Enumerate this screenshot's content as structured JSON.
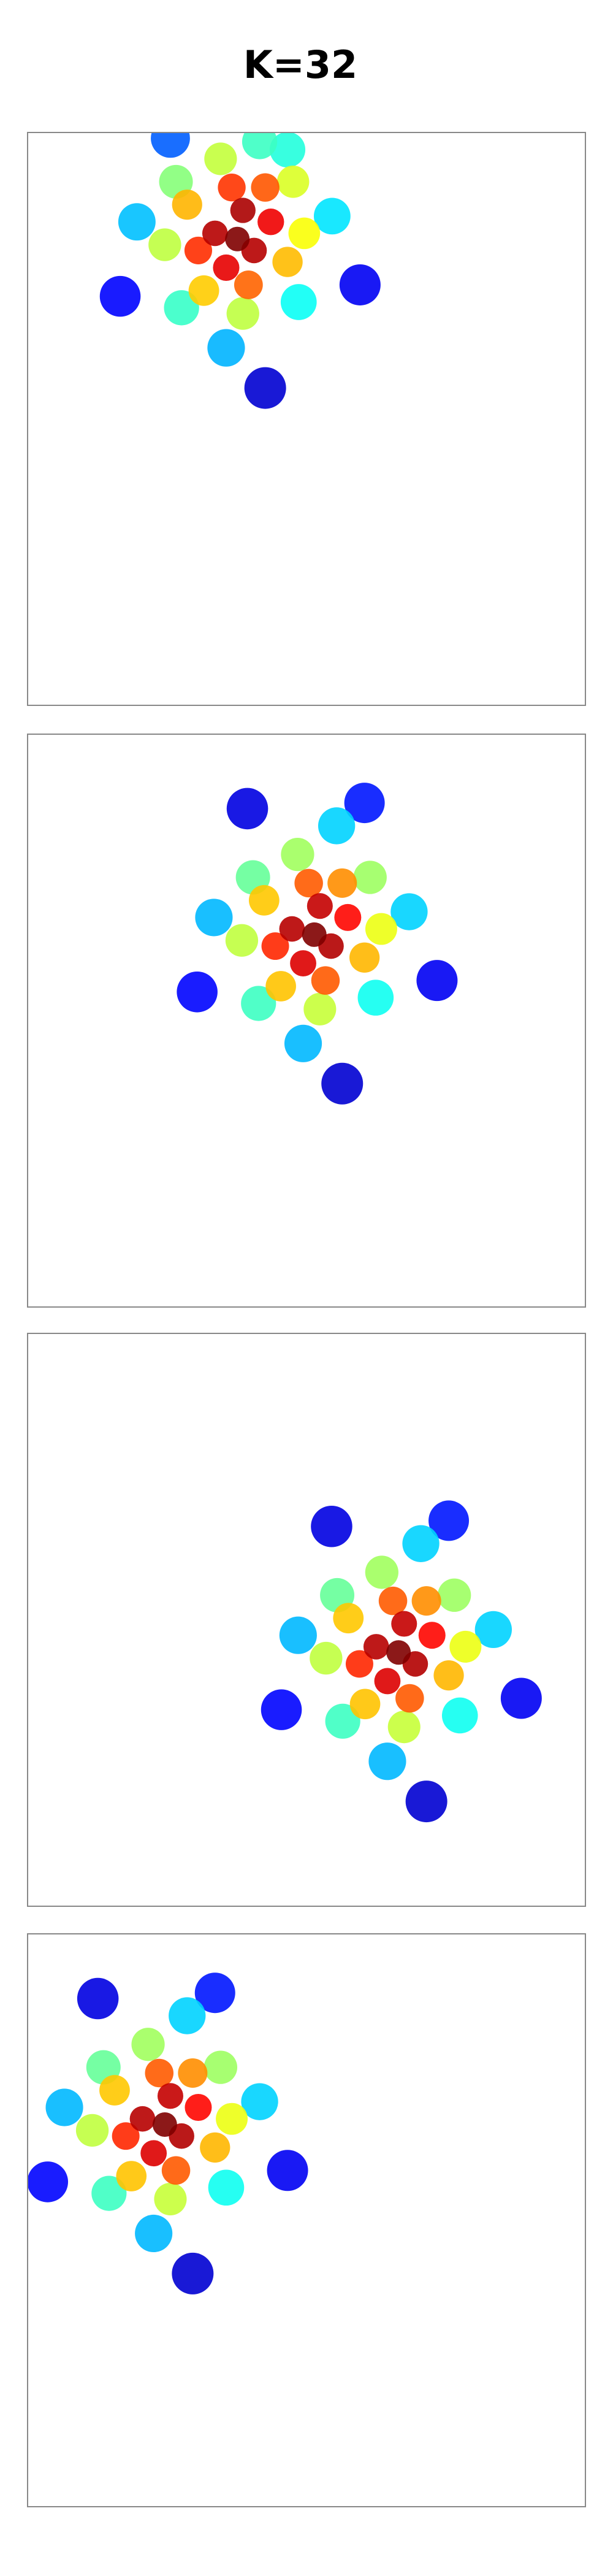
{
  "title": "K=32",
  "chart_data": [
    {
      "type": "scatter",
      "colormap": "jet",
      "xlim": [
        0,
        10
      ],
      "ylim": [
        0,
        10
      ],
      "x": [
        3.76,
        4.06,
        3.36,
        3.86,
        3.56,
        4.36,
        3.06,
        3.96,
        3.66,
        4.66,
        2.86,
        4.26,
        3.16,
        4.96,
        2.46,
        3.86,
        3.46,
        4.76,
        2.66,
        4.86,
        2.76,
        5.46,
        1.96,
        4.16,
        3.56,
        5.96,
        1.66,
        4.66,
        2.56,
        4.26
      ],
      "y": [
        8.14,
        7.94,
        8.24,
        8.64,
        7.64,
        8.44,
        7.94,
        7.34,
        9.04,
        7.74,
        8.74,
        9.04,
        7.24,
        8.24,
        8.04,
        6.84,
        9.54,
        9.14,
        9.14,
        7.04,
        6.94,
        8.54,
        8.44,
        9.84,
        6.24,
        7.34,
        7.14,
        9.7,
        9.9,
        5.54
      ]
    },
    {
      "type": "scatter",
      "colormap": "jet",
      "xlim": [
        0,
        10
      ],
      "ylim": [
        0,
        10
      ],
      "x": [
        5.14,
        5.44,
        4.74,
        5.24,
        4.94,
        5.74,
        4.44,
        5.34,
        5.04,
        6.04,
        4.24,
        5.64,
        4.54,
        6.34,
        3.84,
        5.24,
        4.84,
        6.14,
        4.04,
        6.24,
        4.14,
        6.84,
        3.34,
        5.54,
        4.94,
        7.34,
        3.04,
        6.04,
        3.94,
        5.64
      ],
      "y": [
        6.5,
        6.3,
        6.6,
        7.0,
        6.0,
        6.8,
        6.3,
        5.7,
        7.4,
        6.1,
        7.1,
        7.4,
        5.6,
        6.6,
        6.4,
        5.2,
        7.9,
        7.5,
        7.5,
        5.4,
        5.3,
        6.9,
        6.8,
        8.4,
        4.6,
        5.7,
        5.5,
        8.8,
        8.7,
        3.9
      ]
    },
    {
      "type": "scatter",
      "colormap": "jet",
      "xlim": [
        0,
        10
      ],
      "ylim": [
        0,
        10
      ],
      "x": [
        6.65,
        6.95,
        6.25,
        6.75,
        6.45,
        7.25,
        5.95,
        6.85,
        6.55,
        7.55,
        5.75,
        7.15,
        6.05,
        7.85,
        5.35,
        6.75,
        6.35,
        7.65,
        5.55,
        7.75,
        5.65,
        8.35,
        4.85,
        7.05,
        6.45,
        8.85,
        4.55,
        7.55,
        5.45,
        7.15
      ],
      "y": [
        4.43,
        4.23,
        4.53,
        4.93,
        3.93,
        4.73,
        4.23,
        3.63,
        5.33,
        4.03,
        5.03,
        5.33,
        3.53,
        4.53,
        4.33,
        3.13,
        5.83,
        5.43,
        5.43,
        3.33,
        3.23,
        4.83,
        4.73,
        6.33,
        2.53,
        3.63,
        3.43,
        6.73,
        6.63,
        1.83
      ]
    },
    {
      "type": "scatter",
      "colormap": "jet",
      "xlim": [
        0,
        10
      ],
      "ylim": [
        0,
        10
      ],
      "x": [
        2.46,
        2.76,
        2.06,
        2.56,
        2.26,
        3.06,
        1.76,
        2.66,
        2.36,
        3.36,
        1.56,
        2.96,
        1.86,
        3.66,
        1.16,
        2.56,
        2.16,
        3.46,
        1.36,
        3.56,
        1.46,
        4.16,
        0.66,
        2.86,
        2.26,
        4.66,
        0.36,
        3.36,
        1.26,
        2.96
      ],
      "y": [
        6.67,
        6.47,
        6.77,
        7.17,
        6.17,
        6.97,
        6.47,
        5.87,
        7.57,
        6.27,
        7.27,
        7.57,
        5.77,
        6.77,
        6.57,
        5.37,
        8.07,
        7.67,
        7.67,
        5.57,
        5.47,
        7.07,
        6.97,
        8.57,
        4.77,
        5.87,
        5.67,
        8.97,
        8.87,
        4.07
      ]
    }
  ]
}
